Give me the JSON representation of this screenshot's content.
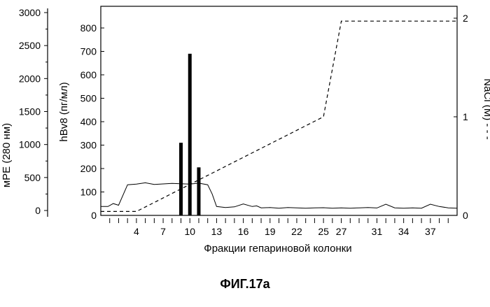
{
  "figure_caption": "ФИГ.17а",
  "chart_data": {
    "type": "bar",
    "xlabel": "Фракции гепариновой колонки",
    "x_tick_labels": [
      "4",
      "7",
      "10",
      "13",
      "16",
      "19",
      "22",
      "25",
      "27",
      "31",
      "34",
      "37"
    ],
    "x_tick_positions": [
      4,
      7,
      10,
      13,
      16,
      19,
      22,
      25,
      27,
      31,
      34,
      37
    ],
    "xlim": [
      0,
      40
    ],
    "axes": {
      "mpe": {
        "label": "мРЕ (280 нм)",
        "ticks": [
          0,
          500,
          1000,
          1500,
          2000,
          2500,
          3000
        ],
        "range": [
          0,
          3000
        ]
      },
      "hbv8": {
        "label": "hBv8 (пг/мл)",
        "ticks": [
          0,
          100,
          200,
          300,
          400,
          500,
          600,
          700,
          800
        ],
        "range": [
          0,
          850
        ]
      },
      "nacl": {
        "label": "NaCl (M) - - -",
        "ticks": [
          0,
          1,
          2
        ],
        "range": [
          0,
          2.06
        ]
      }
    },
    "bars": {
      "name": "hBv8",
      "x": [
        9,
        10,
        11
      ],
      "values": [
        310,
        690,
        205
      ]
    },
    "nacl_gradient": {
      "name": "NaCl",
      "style": "dashed",
      "x": [
        0,
        4,
        25,
        27,
        40
      ],
      "y": [
        0.04,
        0.04,
        1.0,
        1.97,
        1.97
      ]
    },
    "absorbance_profile": {
      "name": "мРЕ (280 нм)",
      "style": "solid",
      "x": [
        0,
        0.8,
        1.4,
        2,
        3,
        4,
        5,
        6,
        8,
        10,
        11,
        12,
        12.5,
        13,
        14,
        15,
        16,
        17,
        17.5,
        18,
        19,
        20,
        21,
        22,
        23,
        24,
        25,
        26,
        27,
        28,
        29,
        30,
        31,
        32,
        33,
        34,
        35,
        36,
        37,
        38,
        39,
        40
      ],
      "y": [
        60,
        60,
        105,
        80,
        390,
        400,
        420,
        395,
        410,
        400,
        415,
        390,
        250,
        60,
        45,
        55,
        100,
        60,
        70,
        40,
        45,
        35,
        45,
        40,
        35,
        40,
        42,
        35,
        40,
        35,
        40,
        45,
        38,
        95,
        40,
        35,
        40,
        35,
        95,
        60,
        40,
        35
      ]
    }
  }
}
